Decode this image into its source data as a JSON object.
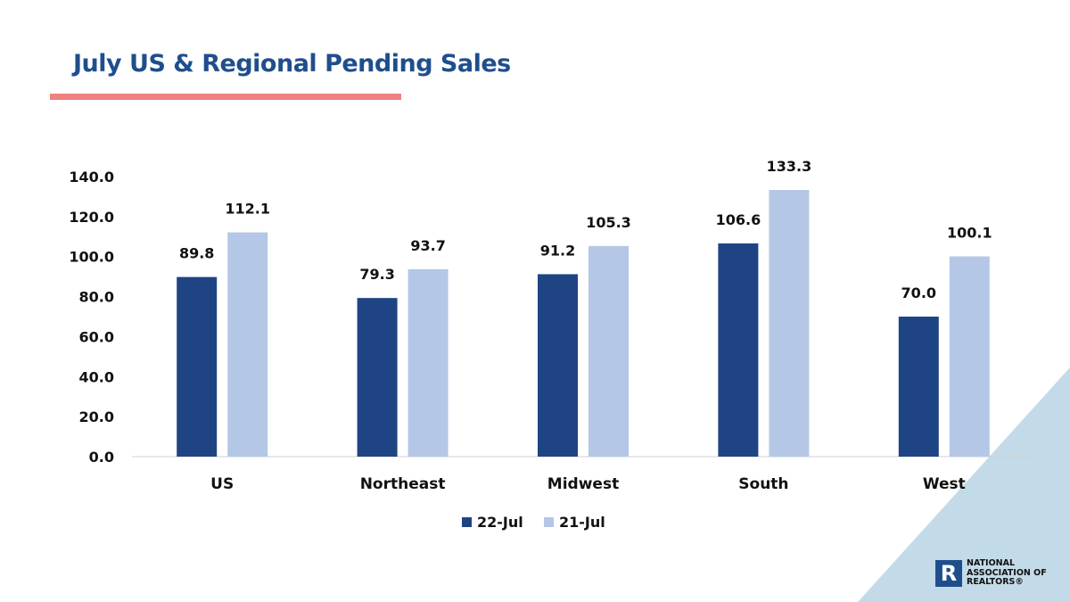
{
  "slide": {
    "title": "July US & Regional Pending Sales",
    "colors": {
      "title": "#1f4e8c",
      "underline": "#f08080",
      "triangle": "#c3dbe8"
    }
  },
  "logo": {
    "mark": "R",
    "text": "NATIONAL\nASSOCIATION OF\nREALTORS®"
  },
  "chart_data": {
    "type": "bar",
    "title": "",
    "xlabel": "",
    "ylabel": "",
    "categories": [
      "US",
      "Northeast",
      "Midwest",
      "South",
      "West"
    ],
    "series": [
      {
        "name": "22-Jul",
        "color": "#1f4484",
        "values": [
          89.8,
          79.3,
          91.2,
          106.6,
          70.0
        ]
      },
      {
        "name": "21-Jul",
        "color": "#b4c7e7",
        "values": [
          112.1,
          93.7,
          105.3,
          133.3,
          100.1
        ]
      }
    ],
    "ylim": [
      0,
      140
    ],
    "y_ticks": [
      "0.0",
      "20.0",
      "40.0",
      "60.0",
      "80.0",
      "100.0",
      "120.0",
      "140.0"
    ],
    "grid": false,
    "data_labels": true,
    "legend_position": "bottom"
  }
}
